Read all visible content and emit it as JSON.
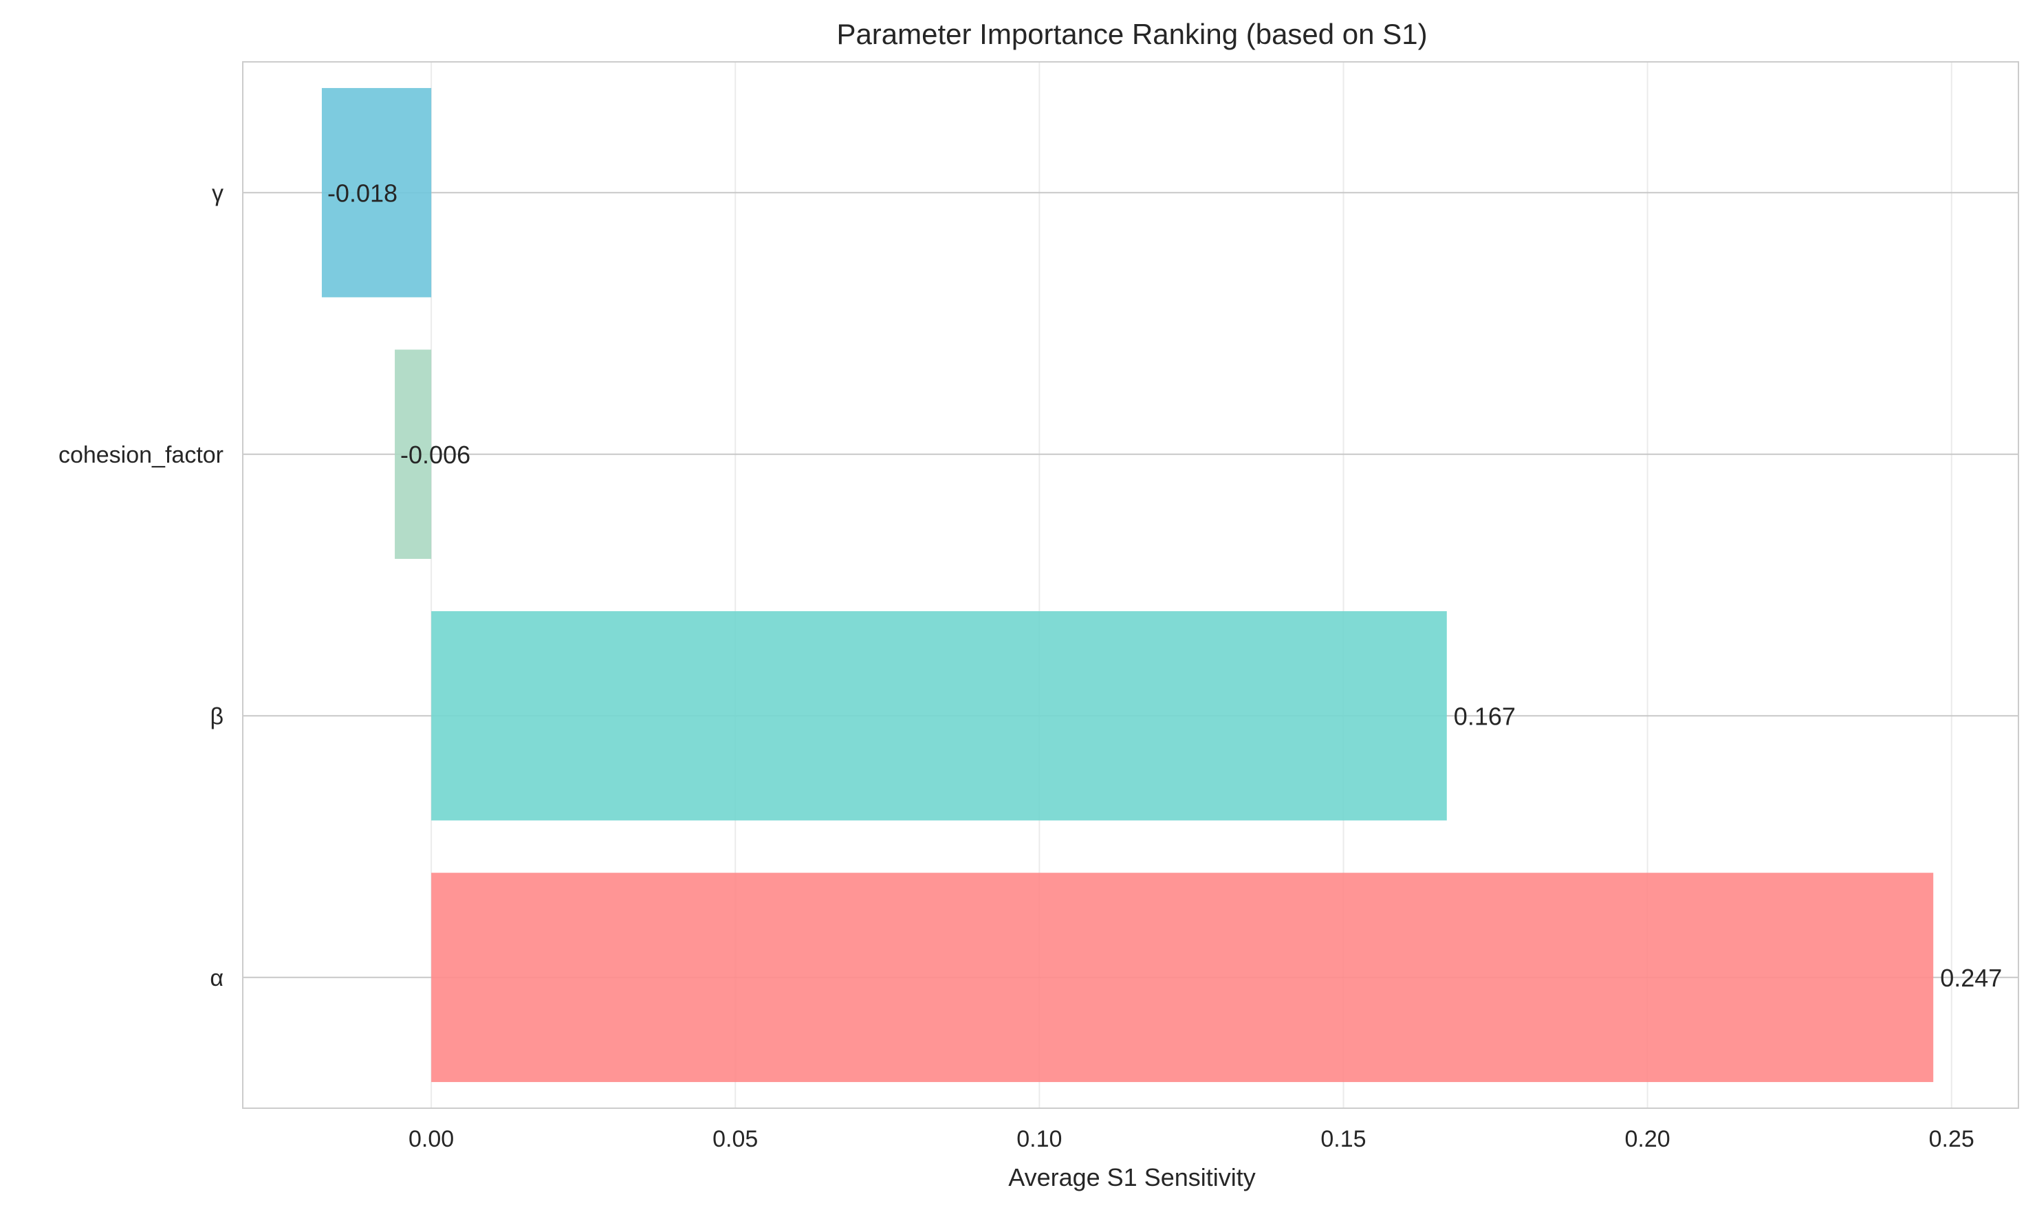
{
  "chart_data": {
    "type": "bar",
    "orientation": "horizontal",
    "title": "Parameter Importance Ranking (based on S1)",
    "xlabel": "Average S1 Sensitivity",
    "ylabel": "",
    "xlim": [
      -0.031,
      0.261
    ],
    "xticks": [
      0.0,
      0.05,
      0.1,
      0.15,
      0.2,
      0.25
    ],
    "xtick_labels": [
      "0.00",
      "0.05",
      "0.10",
      "0.15",
      "0.20",
      "0.25"
    ],
    "categories": [
      "α",
      "β",
      "cohesion_factor",
      "γ"
    ],
    "values": [
      0.247,
      0.167,
      -0.006,
      -0.018
    ],
    "value_labels": [
      "0.247",
      "0.167",
      "-0.006",
      "-0.018"
    ],
    "colors": [
      "#FF8A8A",
      "#72D6CF",
      "#ABD8C2",
      "#6FC5DC"
    ],
    "grid": true,
    "legend": "none"
  }
}
